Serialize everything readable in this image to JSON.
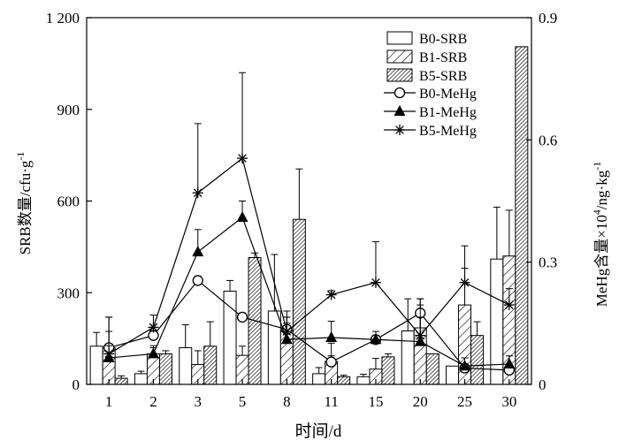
{
  "chart_data": {
    "type": "bar",
    "xlabel": "时间/d",
    "ylabel_left": "SRB数量/cfu·g",
    "ylabel_left_sup": "-1",
    "ylabel_right_pre": "MeHg含量×10",
    "ylabel_right_sup": "4",
    "ylabel_right_mid": "/ng·kg",
    "ylabel_right_sup2": "-1",
    "categories": [
      "1",
      "2",
      "3",
      "5",
      "8",
      "11",
      "15",
      "20",
      "25",
      "30"
    ],
    "ylim_left": [
      0,
      1200
    ],
    "yticks_left": [
      0,
      300,
      600,
      900,
      1200
    ],
    "ytick_labels_left": [
      "0",
      "300",
      "600",
      "900",
      "1 200"
    ],
    "ylim_right": [
      0,
      0.9
    ],
    "yticks_right": [
      0,
      0.3,
      0.6,
      0.9
    ],
    "ytick_labels_right": [
      "0",
      "0.3",
      "0.6",
      "0.9"
    ],
    "legend_position": "top-right",
    "bar_series": [
      {
        "name": "B0-SRB",
        "pattern": "white",
        "values": [
          125,
          35,
          120,
          305,
          240,
          35,
          25,
          175,
          60,
          410
        ],
        "errors": [
          45,
          8,
          75,
          35,
          185,
          20,
          8,
          105,
          0,
          170
        ]
      },
      {
        "name": "B1-SRB",
        "pattern": "sparse-hatch",
        "values": [
          120,
          100,
          65,
          95,
          175,
          75,
          50,
          185,
          260,
          420
        ],
        "errors": [
          100,
          20,
          45,
          30,
          45,
          60,
          35,
          95,
          120,
          150
        ]
      },
      {
        "name": "B5-SRB",
        "pattern": "dense-hatch",
        "values": [
          20,
          100,
          125,
          415,
          540,
          25,
          90,
          100,
          160,
          1105
        ],
        "errors": [
          8,
          10,
          80,
          15,
          165,
          5,
          10,
          0,
          45,
          0
        ]
      }
    ],
    "line_series": [
      {
        "name": "B0-MeHg",
        "marker": "circle",
        "values": [
          0.09,
          0.12,
          0.255,
          0.165,
          0.135,
          0.055,
          0.11,
          0.175,
          0.04,
          0.035
        ],
        "errors": [
          0.04,
          0.02,
          0.01,
          0.01,
          0.03,
          0.015,
          0.01,
          0.02,
          0.01,
          0.01
        ]
      },
      {
        "name": "B1-MeHg",
        "marker": "triangle",
        "values": [
          0.065,
          0.075,
          0.325,
          0.41,
          0.11,
          0.115,
          0.11,
          0.105,
          0.045,
          0.05
        ],
        "errors": [
          0.03,
          0.02,
          0.055,
          0.04,
          0.04,
          0.04,
          0.02,
          0.06,
          0.02,
          0.02
        ]
      },
      {
        "name": "B5-MeHg",
        "marker": "star",
        "values": [
          0.075,
          0.14,
          0.47,
          0.555,
          0.13,
          0.22,
          0.25,
          0.12,
          0.25,
          0.195
        ],
        "errors": [
          0.09,
          0.03,
          0.17,
          0.21,
          0.05,
          0.01,
          0.1,
          0.09,
          0.09,
          0.04
        ]
      }
    ]
  }
}
